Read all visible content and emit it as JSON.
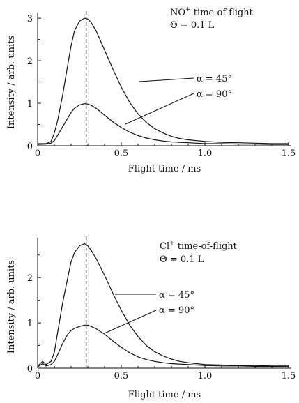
{
  "chart_data": [
    {
      "type": "line",
      "title": "NO⁺ time-of-flight",
      "annotation_main": "NO",
      "annotation_sup": "+",
      "annotation_rest": " time-of-flight",
      "subtitle": "Θ = 0.1 L",
      "xlabel": "Flight time / ms",
      "ylabel": "Intensity / arb. units",
      "xlim": [
        0,
        1.5
      ],
      "ylim": [
        0,
        3.1
      ],
      "xticks": [
        0,
        0.5,
        1.0,
        1.5
      ],
      "xtick_labels": [
        "0",
        "0.5",
        "1.0",
        "1.5"
      ],
      "yticks": [
        0,
        1,
        2,
        3
      ],
      "ytick_labels": [
        "0",
        "1",
        "2",
        "3"
      ],
      "peak_marker_x": 0.29,
      "series": [
        {
          "name": "α = 45°",
          "x": [
            0,
            0.05,
            0.08,
            0.1,
            0.12,
            0.15,
            0.18,
            0.2,
            0.22,
            0.25,
            0.28,
            0.3,
            0.32,
            0.35,
            0.4,
            0.45,
            0.5,
            0.55,
            0.6,
            0.65,
            0.7,
            0.75,
            0.8,
            0.85,
            0.9,
            0.95,
            1.0,
            1.1,
            1.2,
            1.3,
            1.4,
            1.5
          ],
          "values": [
            0.05,
            0.05,
            0.1,
            0.3,
            0.6,
            1.2,
            1.9,
            2.35,
            2.7,
            2.93,
            3.0,
            2.98,
            2.9,
            2.7,
            2.25,
            1.8,
            1.38,
            1.02,
            0.75,
            0.55,
            0.4,
            0.3,
            0.22,
            0.17,
            0.14,
            0.12,
            0.1,
            0.08,
            0.07,
            0.06,
            0.05,
            0.05
          ]
        },
        {
          "name": "α = 90°",
          "x": [
            0,
            0.05,
            0.08,
            0.1,
            0.12,
            0.15,
            0.18,
            0.2,
            0.22,
            0.25,
            0.28,
            0.3,
            0.32,
            0.35,
            0.4,
            0.45,
            0.5,
            0.55,
            0.6,
            0.65,
            0.7,
            0.75,
            0.8,
            0.85,
            0.9,
            0.95,
            1.0,
            1.1,
            1.2,
            1.3,
            1.4,
            1.5
          ],
          "values": [
            0.03,
            0.04,
            0.06,
            0.12,
            0.25,
            0.45,
            0.65,
            0.78,
            0.88,
            0.96,
            0.99,
            0.98,
            0.95,
            0.88,
            0.72,
            0.56,
            0.43,
            0.32,
            0.24,
            0.18,
            0.14,
            0.11,
            0.09,
            0.08,
            0.07,
            0.06,
            0.05,
            0.05,
            0.04,
            0.04,
            0.03,
            0.03
          ]
        }
      ]
    },
    {
      "type": "line",
      "title": "Cl⁺ time-of-flight",
      "annotation_main": "Cl",
      "annotation_sup": "+",
      "annotation_rest": " time-of-flight",
      "subtitle": "Θ = 0.1 L",
      "xlabel": "Flight time / ms",
      "ylabel": "Intensity / arb. units",
      "xlim": [
        0,
        1.5
      ],
      "ylim": [
        0,
        2.85
      ],
      "xticks": [
        0,
        0.5,
        1.0,
        1.5
      ],
      "xtick_labels": [
        "0",
        "0.5",
        "1.0",
        "1.5"
      ],
      "yticks": [
        0,
        1,
        2
      ],
      "ytick_labels": [
        "0",
        "1",
        "2"
      ],
      "peak_marker_x": 0.29,
      "series": [
        {
          "name": "α = 45°",
          "x": [
            0,
            0.03,
            0.05,
            0.08,
            0.1,
            0.12,
            0.15,
            0.18,
            0.2,
            0.22,
            0.25,
            0.28,
            0.3,
            0.32,
            0.35,
            0.4,
            0.45,
            0.5,
            0.55,
            0.6,
            0.65,
            0.7,
            0.75,
            0.8,
            0.85,
            0.9,
            0.95,
            1.0,
            1.1,
            1.2,
            1.3,
            1.4,
            1.5
          ],
          "values": [
            0.05,
            0.15,
            0.08,
            0.15,
            0.35,
            0.8,
            1.45,
            2.0,
            2.35,
            2.55,
            2.7,
            2.75,
            2.7,
            2.6,
            2.42,
            2.05,
            1.65,
            1.28,
            0.95,
            0.7,
            0.5,
            0.36,
            0.27,
            0.2,
            0.15,
            0.12,
            0.1,
            0.08,
            0.07,
            0.06,
            0.06,
            0.05,
            0.05
          ]
        },
        {
          "name": "α = 90°",
          "x": [
            0,
            0.03,
            0.05,
            0.08,
            0.1,
            0.12,
            0.15,
            0.18,
            0.2,
            0.22,
            0.25,
            0.28,
            0.3,
            0.32,
            0.35,
            0.4,
            0.45,
            0.5,
            0.55,
            0.6,
            0.65,
            0.7,
            0.75,
            0.8,
            0.85,
            0.9,
            0.95,
            1.0,
            1.1,
            1.2,
            1.3,
            1.4,
            1.5
          ],
          "values": [
            0.03,
            0.1,
            0.05,
            0.08,
            0.15,
            0.3,
            0.55,
            0.75,
            0.83,
            0.88,
            0.92,
            0.95,
            0.95,
            0.92,
            0.87,
            0.75,
            0.6,
            0.46,
            0.34,
            0.25,
            0.19,
            0.15,
            0.12,
            0.1,
            0.09,
            0.08,
            0.07,
            0.06,
            0.05,
            0.05,
            0.04,
            0.04,
            0.03
          ]
        }
      ]
    }
  ]
}
